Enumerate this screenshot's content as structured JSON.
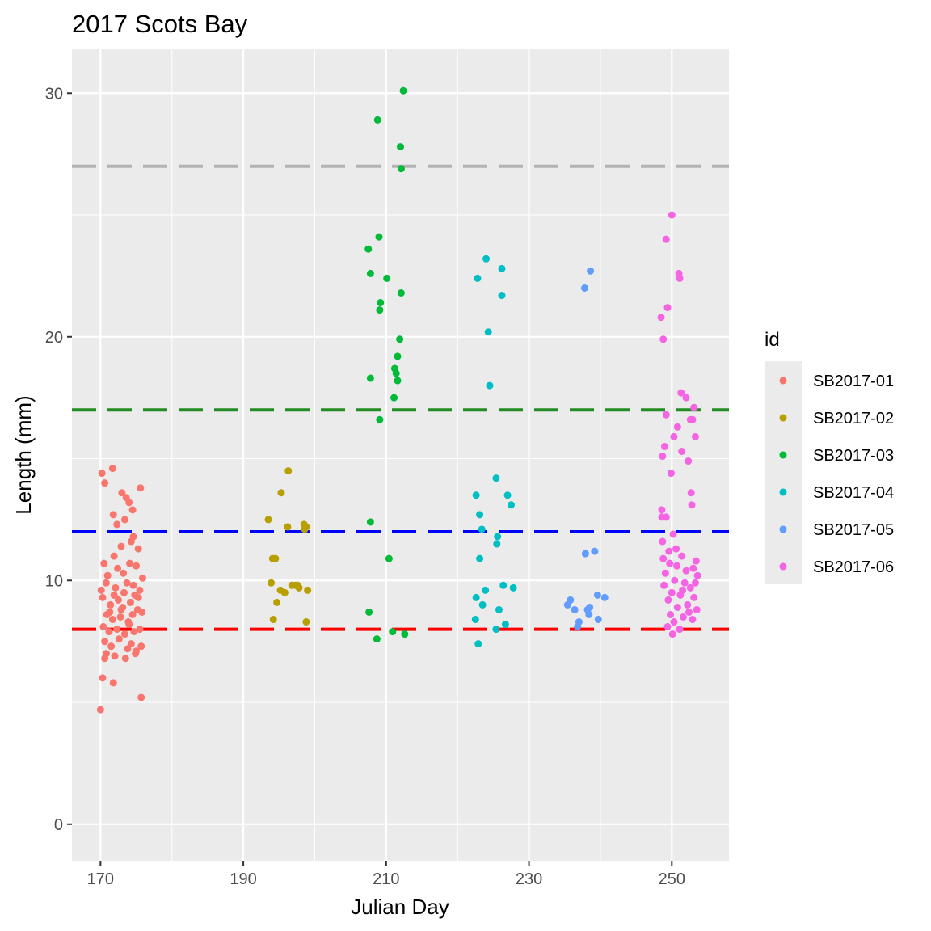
{
  "chart_data": {
    "type": "scatter",
    "title": "2017 Scots Bay",
    "xlabel": "Julian Day",
    "ylabel": "Length (mm)",
    "xlim": [
      166,
      258
    ],
    "ylim": [
      -1.5,
      31.8
    ],
    "x_ticks": [
      170,
      190,
      210,
      230,
      250
    ],
    "x_tick_labels": [
      "170",
      "190",
      "210",
      "230",
      "250"
    ],
    "y_ticks": [
      0,
      10,
      20,
      30
    ],
    "y_tick_labels": [
      "0",
      "10",
      "20",
      "30"
    ],
    "grid": true,
    "legend": {
      "title": "id",
      "position": "right"
    },
    "hlines": [
      {
        "y": 27,
        "color": "#b3b3b3"
      },
      {
        "y": 17,
        "color": "#228b22"
      },
      {
        "y": 12,
        "color": "#0000ff"
      },
      {
        "y": 8,
        "color": "#ff0000"
      }
    ],
    "series": [
      {
        "name": "SB2017-01",
        "color": "#F8766D",
        "points": [
          [
            170.0,
            4.7
          ],
          [
            170.3,
            6.0
          ],
          [
            170.6,
            6.8
          ],
          [
            171.8,
            5.8
          ],
          [
            175.7,
            5.2
          ],
          [
            170.2,
            14.4
          ],
          [
            170.6,
            14.0
          ],
          [
            171.7,
            14.6
          ],
          [
            173.0,
            13.6
          ],
          [
            173.6,
            13.4
          ],
          [
            174.0,
            13.2
          ],
          [
            174.5,
            12.9
          ],
          [
            175.6,
            13.8
          ],
          [
            172.3,
            12.3
          ],
          [
            171.8,
            12.7
          ],
          [
            173.4,
            12.5
          ],
          [
            174.6,
            11.8
          ],
          [
            175.3,
            11.3
          ],
          [
            172.9,
            11.4
          ],
          [
            170.5,
            10.7
          ],
          [
            171.0,
            10.2
          ],
          [
            171.9,
            11.0
          ],
          [
            174.1,
            10.7
          ],
          [
            173.2,
            10.3
          ],
          [
            175.0,
            10.6
          ],
          [
            170.8,
            9.9
          ],
          [
            172.1,
            9.7
          ],
          [
            173.7,
            9.9
          ],
          [
            175.5,
            9.6
          ],
          [
            174.8,
            9.4
          ],
          [
            170.3,
            9.3
          ],
          [
            171.4,
            9.0
          ],
          [
            172.5,
            9.2
          ],
          [
            173.1,
            8.9
          ],
          [
            174.2,
            9.1
          ],
          [
            175.2,
            8.8
          ],
          [
            170.9,
            8.6
          ],
          [
            171.7,
            8.4
          ],
          [
            172.8,
            8.5
          ],
          [
            173.9,
            8.3
          ],
          [
            174.5,
            8.6
          ],
          [
            175.8,
            8.7
          ],
          [
            170.4,
            8.1
          ],
          [
            171.2,
            7.9
          ],
          [
            172.3,
            8.0
          ],
          [
            173.4,
            7.8
          ],
          [
            174.7,
            7.9
          ],
          [
            175.5,
            8.0
          ],
          [
            170.6,
            7.5
          ],
          [
            171.5,
            7.3
          ],
          [
            172.6,
            7.6
          ],
          [
            173.8,
            7.2
          ],
          [
            174.3,
            7.4
          ],
          [
            175.0,
            7.1
          ],
          [
            170.8,
            7.0
          ],
          [
            172.0,
            6.9
          ],
          [
            173.5,
            6.8
          ],
          [
            174.9,
            7.0
          ],
          [
            175.7,
            7.3
          ],
          [
            171.3,
            8.7
          ],
          [
            172.9,
            8.8
          ],
          [
            174.0,
            8.2
          ],
          [
            175.3,
            9.3
          ],
          [
            170.1,
            9.6
          ],
          [
            171.9,
            9.4
          ],
          [
            173.3,
            9.5
          ],
          [
            174.6,
            9.8
          ],
          [
            172.4,
            10.5
          ],
          [
            174.3,
            11.6
          ],
          [
            175.9,
            10.1
          ]
        ]
      },
      {
        "name": "SB2017-02",
        "color": "#B79F00",
        "points": [
          [
            193.5,
            12.5
          ],
          [
            195.3,
            13.6
          ],
          [
            196.3,
            14.5
          ],
          [
            196.2,
            12.2
          ],
          [
            198.5,
            12.3
          ],
          [
            198.8,
            12.2
          ],
          [
            198.6,
            12.1
          ],
          [
            194.1,
            10.9
          ],
          [
            194.5,
            10.9
          ],
          [
            193.9,
            9.9
          ],
          [
            195.2,
            9.6
          ],
          [
            194.7,
            9.1
          ],
          [
            197.3,
            9.8
          ],
          [
            197.6,
            9.8
          ],
          [
            197.8,
            9.7
          ],
          [
            199.0,
            9.6
          ],
          [
            196.8,
            9.8
          ],
          [
            194.2,
            8.4
          ],
          [
            198.8,
            8.3
          ],
          [
            195.8,
            9.5
          ]
        ]
      },
      {
        "name": "SB2017-03",
        "color": "#00BA38",
        "points": [
          [
            212.4,
            30.1
          ],
          [
            208.8,
            28.9
          ],
          [
            212.0,
            27.8
          ],
          [
            212.1,
            26.9
          ],
          [
            209.0,
            24.1
          ],
          [
            207.5,
            23.6
          ],
          [
            207.8,
            22.6
          ],
          [
            210.1,
            22.4
          ],
          [
            212.1,
            21.8
          ],
          [
            209.2,
            21.4
          ],
          [
            209.1,
            21.1
          ],
          [
            211.9,
            19.9
          ],
          [
            211.6,
            19.2
          ],
          [
            211.2,
            18.7
          ],
          [
            211.4,
            18.5
          ],
          [
            211.6,
            18.2
          ],
          [
            207.8,
            18.3
          ],
          [
            211.1,
            17.5
          ],
          [
            209.1,
            16.6
          ],
          [
            207.8,
            12.4
          ],
          [
            210.4,
            10.9
          ],
          [
            207.6,
            8.7
          ],
          [
            208.7,
            7.6
          ],
          [
            210.9,
            7.9
          ],
          [
            212.6,
            7.8
          ]
        ]
      },
      {
        "name": "SB2017-04",
        "color": "#00BFC4",
        "points": [
          [
            224.0,
            23.2
          ],
          [
            226.2,
            22.8
          ],
          [
            222.8,
            22.4
          ],
          [
            226.2,
            21.7
          ],
          [
            224.3,
            20.2
          ],
          [
            224.5,
            18.0
          ],
          [
            225.4,
            14.2
          ],
          [
            222.6,
            13.5
          ],
          [
            227.0,
            13.5
          ],
          [
            227.5,
            13.1
          ],
          [
            223.1,
            12.7
          ],
          [
            223.4,
            12.1
          ],
          [
            225.6,
            11.8
          ],
          [
            225.5,
            11.5
          ],
          [
            223.1,
            10.9
          ],
          [
            226.4,
            9.8
          ],
          [
            227.8,
            9.7
          ],
          [
            223.9,
            9.6
          ],
          [
            222.6,
            9.3
          ],
          [
            223.5,
            9.0
          ],
          [
            225.8,
            8.8
          ],
          [
            222.5,
            8.4
          ],
          [
            226.7,
            8.2
          ],
          [
            225.4,
            8.0
          ],
          [
            222.9,
            7.4
          ]
        ]
      },
      {
        "name": "SB2017-05",
        "color": "#619CFF",
        "points": [
          [
            238.6,
            22.7
          ],
          [
            237.8,
            22.0
          ],
          [
            237.9,
            11.1
          ],
          [
            239.2,
            11.2
          ],
          [
            239.6,
            9.4
          ],
          [
            240.6,
            9.3
          ],
          [
            235.8,
            9.2
          ],
          [
            235.4,
            9.0
          ],
          [
            236.4,
            8.8
          ],
          [
            238.2,
            8.8
          ],
          [
            238.5,
            8.9
          ],
          [
            238.4,
            8.6
          ],
          [
            239.7,
            8.4
          ],
          [
            237.0,
            8.3
          ],
          [
            236.8,
            8.1
          ]
        ]
      },
      {
        "name": "SB2017-06",
        "color": "#F564E3",
        "points": [
          [
            250.0,
            25.0
          ],
          [
            249.2,
            24.0
          ],
          [
            251.0,
            22.6
          ],
          [
            251.1,
            22.4
          ],
          [
            249.4,
            21.2
          ],
          [
            248.5,
            20.8
          ],
          [
            248.8,
            19.9
          ],
          [
            251.3,
            17.7
          ],
          [
            252.0,
            17.5
          ],
          [
            253.1,
            17.1
          ],
          [
            249.2,
            16.8
          ],
          [
            252.6,
            16.6
          ],
          [
            250.8,
            16.3
          ],
          [
            252.9,
            16.6
          ],
          [
            250.3,
            15.9
          ],
          [
            253.3,
            15.9
          ],
          [
            249.0,
            15.5
          ],
          [
            251.4,
            15.3
          ],
          [
            248.7,
            15.1
          ],
          [
            252.3,
            14.9
          ],
          [
            249.9,
            14.4
          ],
          [
            252.7,
            13.6
          ],
          [
            252.8,
            13.1
          ],
          [
            248.6,
            12.9
          ],
          [
            248.6,
            12.6
          ],
          [
            249.2,
            12.6
          ],
          [
            250.2,
            11.9
          ],
          [
            248.7,
            11.6
          ],
          [
            249.6,
            11.2
          ],
          [
            251.4,
            11.0
          ],
          [
            253.4,
            10.8
          ],
          [
            250.7,
            10.6
          ],
          [
            252.0,
            10.4
          ],
          [
            249.1,
            10.3
          ],
          [
            253.6,
            10.2
          ],
          [
            250.4,
            10.0
          ],
          [
            251.8,
            9.9
          ],
          [
            248.9,
            9.8
          ],
          [
            252.6,
            9.7
          ],
          [
            250.0,
            9.5
          ],
          [
            251.2,
            9.4
          ],
          [
            253.1,
            9.3
          ],
          [
            249.5,
            9.2
          ],
          [
            252.2,
            9.0
          ],
          [
            250.8,
            8.9
          ],
          [
            253.5,
            8.8
          ],
          [
            249.8,
            8.6
          ],
          [
            251.6,
            8.5
          ],
          [
            252.9,
            8.4
          ],
          [
            250.3,
            8.3
          ],
          [
            249.4,
            8.1
          ],
          [
            251.1,
            8.0
          ],
          [
            250.1,
            7.8
          ],
          [
            253.0,
            10.5
          ],
          [
            248.8,
            10.9
          ],
          [
            251.5,
            9.6
          ],
          [
            249.7,
            10.7
          ],
          [
            252.4,
            8.7
          ],
          [
            250.6,
            11.3
          ],
          [
            253.3,
            9.9
          ]
        ]
      }
    ]
  }
}
